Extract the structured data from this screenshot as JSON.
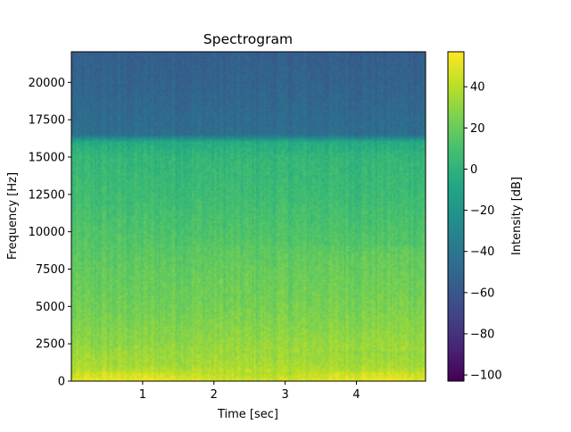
{
  "chart_data": {
    "type": "heatmap",
    "title": "Spectrogram",
    "xlabel": "Time [sec]",
    "ylabel": "Frequency [Hz]",
    "xlim": [
      0.0,
      4.97
    ],
    "ylim": [
      0,
      22050
    ],
    "x_ticks": [
      1,
      2,
      3,
      4
    ],
    "x_tick_labels": [
      "1",
      "2",
      "3",
      "4"
    ],
    "y_ticks": [
      0,
      2500,
      5000,
      7500,
      10000,
      12500,
      15000,
      17500,
      20000
    ],
    "y_tick_labels": [
      "0",
      "2500",
      "5000",
      "7500",
      "10000",
      "12500",
      "15000",
      "17500",
      "20000"
    ],
    "colorbar": {
      "label": "Intensity [dB]",
      "colormap": "viridis",
      "range": [
        -103,
        57
      ],
      "ticks": [
        -100,
        -80,
        -60,
        -40,
        -20,
        0,
        20,
        40
      ],
      "tick_labels": [
        "−100",
        "−80",
        "−60",
        "−40",
        "−20",
        "0",
        "20",
        "40"
      ]
    },
    "intensity_profile_by_frequency": [
      {
        "freq": 0,
        "db": 50
      },
      {
        "freq": 500,
        "db": 42
      },
      {
        "freq": 1000,
        "db": 36
      },
      {
        "freq": 2500,
        "db": 30
      },
      {
        "freq": 5000,
        "db": 22
      },
      {
        "freq": 7500,
        "db": 18
      },
      {
        "freq": 10000,
        "db": 12
      },
      {
        "freq": 12500,
        "db": 6
      },
      {
        "freq": 15000,
        "db": 2
      },
      {
        "freq": 16000,
        "db": -5
      },
      {
        "freq": 16500,
        "db": -45
      },
      {
        "freq": 20000,
        "db": -52
      },
      {
        "freq": 22050,
        "db": -55
      }
    ],
    "grid": false
  }
}
